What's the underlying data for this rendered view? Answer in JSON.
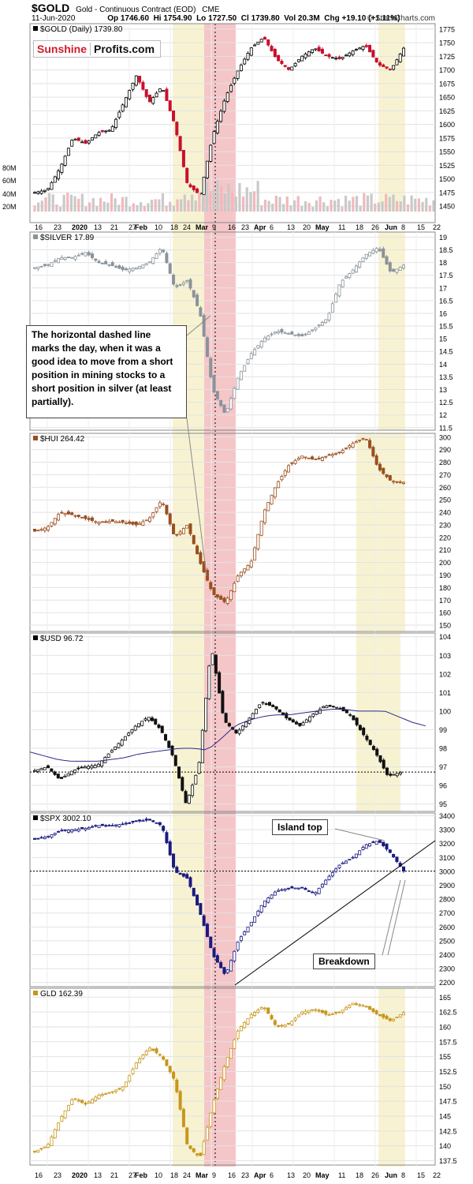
{
  "header": {
    "symbol": "$GOLD",
    "description": "Gold - Continuous Contract (EOD)",
    "exchange": "CME",
    "date": "11-Jun-2020",
    "open": "Op 1746.60",
    "high": "Hi 1754.90",
    "low": "Lo 1727.50",
    "close": "Cl 1739.80",
    "volume": "Vol 20.3M",
    "change": "Chg +19.10 (+1.11%)",
    "copyright": "© StockCharts.com"
  },
  "brand": {
    "part1": "Sunshine",
    "part2": "Profits.com"
  },
  "annotations": {
    "callout": "The horizontal dashed line marks the day, when it was a good idea to move from a short position in mining stocks to a short position in silver (at least partially).",
    "island_top": "Island top",
    "breakdown": "Breakdown"
  },
  "colors": {
    "up_red": "#c8102e",
    "gold_down": "#c8102e",
    "silver": "#8a939a",
    "hui": "#9a4f1f",
    "usd": "#111111",
    "usd_ma": "#2a2a8a",
    "spx": "#1a1a80",
    "gld": "#c8961c",
    "highlight_yellow": "#f7f3d2",
    "highlight_red": "#f5c6c8"
  },
  "chart_data": [
    {
      "type": "candlestick",
      "title": "$GOLD (Daily) 1739.80",
      "ylim": [
        1440,
        1785
      ],
      "yticks": [
        1450,
        1475,
        1500,
        1525,
        1550,
        1575,
        1600,
        1625,
        1650,
        1675,
        1700,
        1725,
        1750,
        1775
      ],
      "volume_ticks": [
        "80M",
        "60M",
        "40M",
        "20M"
      ],
      "anchors": [
        1475,
        1480,
        1520,
        1575,
        1565,
        1585,
        1590,
        1640,
        1690,
        1640,
        1670,
        1600,
        1490,
        1470,
        1580,
        1650,
        1700,
        1740,
        1760,
        1720,
        1700,
        1725,
        1740,
        1725,
        1720,
        1735,
        1745,
        1710,
        1700,
        1740
      ]
    },
    {
      "type": "candlestick",
      "title": "$SILVER 17.89",
      "ylim": [
        11.4,
        19.2
      ],
      "yticks": [
        11.5,
        12.0,
        12.5,
        13.0,
        13.5,
        14.0,
        14.5,
        15.0,
        15.5,
        16.0,
        16.5,
        17.0,
        17.5,
        18.0,
        18.5,
        19.0
      ],
      "anchors": [
        17.8,
        17.9,
        18.2,
        18.2,
        18.4,
        18.0,
        17.9,
        17.7,
        17.8,
        18.0,
        18.6,
        17.0,
        17.3,
        16.0,
        13.0,
        12.0,
        13.5,
        14.4,
        15.0,
        15.3,
        15.2,
        15.1,
        15.4,
        15.8,
        17.2,
        17.7,
        18.3,
        18.6,
        17.6,
        17.9
      ]
    },
    {
      "type": "candlestick",
      "title": "$HUI 264.42",
      "ylim": [
        145,
        303
      ],
      "yticks": [
        150,
        160,
        170,
        180,
        190,
        200,
        210,
        220,
        230,
        240,
        250,
        260,
        270,
        280,
        290,
        300
      ],
      "anchors": [
        225,
        228,
        240,
        238,
        235,
        232,
        233,
        232,
        230,
        235,
        250,
        220,
        230,
        200,
        175,
        168,
        190,
        200,
        240,
        262,
        278,
        285,
        282,
        285,
        288,
        295,
        300,
        275,
        265,
        264
      ]
    },
    {
      "type": "candlestick",
      "title": "$USD 96.72",
      "ylim": [
        94.6,
        104.2
      ],
      "yticks": [
        95,
        96,
        97,
        98,
        99,
        100,
        101,
        102,
        103,
        104
      ],
      "reference_line": 96.72,
      "ma_anchors": [
        97.8,
        97.6,
        97.4,
        97.3,
        97.3,
        97.3,
        97.4,
        97.5,
        97.7,
        97.8,
        97.9,
        98.0,
        98.0,
        97.9,
        98.5,
        99.2,
        99.5,
        99.7,
        99.8,
        99.8,
        99.9,
        100.0,
        100.1,
        100.1,
        100.0,
        100.0,
        100.0,
        99.7,
        99.4,
        99.2
      ],
      "anchors": [
        96.8,
        97.0,
        96.3,
        96.8,
        97.0,
        97.1,
        97.8,
        98.5,
        99.2,
        99.7,
        99.0,
        97.5,
        95.0,
        97.0,
        103.5,
        99.5,
        98.8,
        99.6,
        100.5,
        100.2,
        99.6,
        99.2,
        99.8,
        100.3,
        100.2,
        99.8,
        98.8,
        97.8,
        96.5,
        96.7
      ]
    },
    {
      "type": "candlestick",
      "title": "$SPX 3002.10",
      "ylim": [
        2170,
        3420
      ],
      "yticks": [
        2200,
        2300,
        2400,
        2500,
        2600,
        2700,
        2800,
        2900,
        3000,
        3100,
        3200,
        3300,
        3400
      ],
      "reference_line": 3002,
      "anchors": [
        3230,
        3250,
        3290,
        3300,
        3310,
        3330,
        3330,
        3340,
        3360,
        3370,
        3330,
        3000,
        2950,
        2700,
        2400,
        2250,
        2500,
        2630,
        2780,
        2860,
        2880,
        2880,
        2840,
        2950,
        3050,
        3100,
        3190,
        3220,
        3130,
        3002
      ]
    },
    {
      "type": "candlestick",
      "title": "GLD 162.39",
      "ylim": [
        136.5,
        166.5
      ],
      "yticks": [
        137.5,
        140.0,
        142.5,
        145.0,
        147.5,
        150.0,
        152.5,
        155.0,
        157.5,
        160.0,
        162.5,
        165.0
      ],
      "anchors": [
        139.0,
        140.0,
        144.5,
        148.0,
        147.0,
        148.5,
        149.0,
        150.0,
        154.0,
        156.5,
        155.0,
        151.0,
        140.0,
        138.0,
        147.0,
        154.0,
        159.5,
        162.0,
        163.5,
        160.0,
        160.5,
        162.5,
        163.0,
        162.0,
        162.5,
        164.0,
        163.5,
        162.0,
        161.0,
        162.4
      ]
    }
  ],
  "x_axis_labels_top": [
    "16",
    "23",
    "2020",
    "13",
    "21",
    "27",
    "Feb",
    "10",
    "18",
    "24",
    "Mar",
    "9",
    "16",
    "23",
    "Apr",
    "6",
    "13",
    "20",
    "May",
    "11",
    "18",
    "26",
    "Jun",
    "8",
    "15",
    "22"
  ],
  "x_axis_labels_bottom": [
    "16",
    "23",
    "2020",
    "13",
    "21",
    "27",
    "Feb",
    "10",
    "18",
    "24",
    "Mar",
    "9",
    "16",
    "23",
    "Apr",
    "6",
    "13",
    "20",
    "May",
    "11",
    "18",
    "26",
    "Jun",
    "8",
    "15",
    "22"
  ]
}
